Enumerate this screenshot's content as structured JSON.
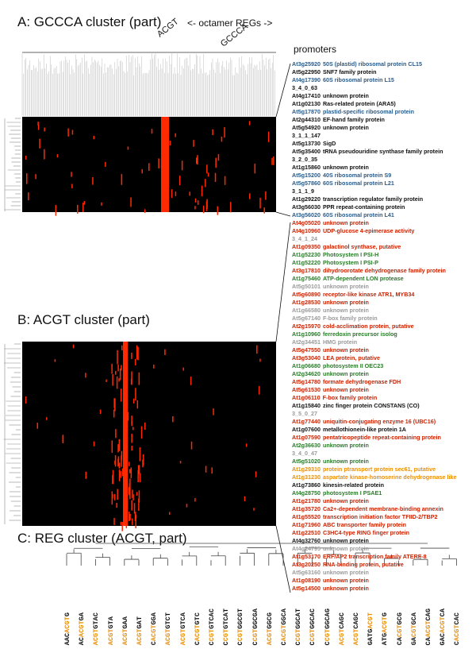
{
  "panels": {
    "a_title": "A: GCCCA cluster (part)",
    "b_title": "B: ACGT cluster (part)",
    "c_title": "C: REG cluster (ACGT, part)",
    "octamer_label": "<- octamer REGs ->",
    "col_acgt": "ACGT",
    "col_gccca": "GCCCA",
    "promoters_label": "promoters"
  },
  "colors": {
    "blue": "#2a5c8a",
    "black": "#111111",
    "red": "#cc2200",
    "green": "#2a7a2a",
    "gray": "#9a9a9a",
    "orange": "#e8900a",
    "heat_red": "#ff2a00",
    "heat_bg": "#000000"
  },
  "genes_a": [
    {
      "id": "At3g25920",
      "desc": "50S (plastid) ribosomal protein CL15",
      "color": "blue"
    },
    {
      "id": "At5g22950",
      "desc": "SNF7 family protein",
      "color": "black"
    },
    {
      "id": "At4g17390",
      "desc": "60S ribosomal protein L15",
      "color": "blue"
    },
    {
      "id": "3_4_0_63",
      "desc": "",
      "color": "black"
    },
    {
      "id": "At4g17410",
      "desc": "unknown protein",
      "color": "black"
    },
    {
      "id": "At1g02130",
      "desc": "Ras-related protein (ARA5)",
      "color": "black"
    },
    {
      "id": "At5g17870",
      "desc": "plastid-specific ribosomal protein",
      "color": "blue"
    },
    {
      "id": "At2g44310",
      "desc": "EF-hand family protein",
      "color": "black"
    },
    {
      "id": "At5g54920",
      "desc": "unknown protein",
      "color": "black"
    },
    {
      "id": "3_1_1_147",
      "desc": "",
      "color": "black"
    },
    {
      "id": "At5g13730",
      "desc": "SigD",
      "color": "black"
    },
    {
      "id": "At5g35400",
      "desc": "tRNA pseudouridine synthase family protein",
      "color": "black"
    },
    {
      "id": "3_2_0_35",
      "desc": "",
      "color": "black"
    },
    {
      "id": "At1g15860",
      "desc": "unknown protein",
      "color": "black"
    },
    {
      "id": "At5g15200",
      "desc": "40S ribosomal protein S9",
      "color": "blue"
    },
    {
      "id": "At5g57860",
      "desc": "60S ribosomal protein L21",
      "color": "blue"
    },
    {
      "id": "3_1_1_9",
      "desc": "",
      "color": "black"
    },
    {
      "id": "At1g29220",
      "desc": "transcription regulator family protein",
      "color": "black"
    },
    {
      "id": "At3g56030",
      "desc": "PPR repeat-containing protein",
      "color": "black"
    },
    {
      "id": "At3g56020",
      "desc": "60S ribosomal protein L41",
      "color": "blue"
    }
  ],
  "genes_b": [
    {
      "id": "At4g05020",
      "desc": "unknown protein",
      "color": "red"
    },
    {
      "id": "At4g10960",
      "desc": "UDP-glucose 4-epimerase activity",
      "color": "red"
    },
    {
      "id": "3_4_1_24",
      "desc": "",
      "color": "gray"
    },
    {
      "id": "At1g09350",
      "desc": "galactinol synthase, putative",
      "color": "red"
    },
    {
      "id": "At1g52230",
      "desc": "Photosystem I PSI-H",
      "color": "green"
    },
    {
      "id": "At1g52220",
      "desc": "Photosystem I PSI-P",
      "color": "green"
    },
    {
      "id": "At3g17810",
      "desc": "dihydroorotate dehydrogenase family protein",
      "color": "red"
    },
    {
      "id": "At1g75460",
      "desc": "ATP-dependent LON protease",
      "color": "green"
    },
    {
      "id": "At5g50101",
      "desc": "unknown protein",
      "color": "gray"
    },
    {
      "id": "At5g60890",
      "desc": "receptor-like kinase ATR1, MYB34",
      "color": "red"
    },
    {
      "id": "At1g28530",
      "desc": "unknown protein",
      "color": "red"
    },
    {
      "id": "At1g66580",
      "desc": "unknown protein",
      "color": "gray"
    },
    {
      "id": "At5g67140",
      "desc": "F-box family protein",
      "color": "gray"
    },
    {
      "id": "At2g15970",
      "desc": "cold-acclimation protein, putative",
      "color": "red"
    },
    {
      "id": "At1g10960",
      "desc": "ferredoxin precursor isolog",
      "color": "green"
    },
    {
      "id": "At2g34451",
      "desc": "HMG protein",
      "color": "gray"
    },
    {
      "id": "At5g47550",
      "desc": "unknown protein",
      "color": "red"
    },
    {
      "id": "At3g53040",
      "desc": "LEA protein, putative",
      "color": "red"
    },
    {
      "id": "At1g06680",
      "desc": "photosystem II OEC23",
      "color": "green"
    },
    {
      "id": "At2g34620",
      "desc": "unknown protein",
      "color": "green"
    },
    {
      "id": "At5g14780",
      "desc": "formate dehydrogenase FDH",
      "color": "red"
    },
    {
      "id": "At5g61530",
      "desc": "unknown protein",
      "color": "red"
    },
    {
      "id": "At1g06110",
      "desc": "F-box family protein",
      "color": "red"
    },
    {
      "id": "At1g15840",
      "desc": "zinc finger protein CONSTANS (CO)",
      "color": "black"
    },
    {
      "id": "3_5_0_27",
      "desc": "",
      "color": "gray"
    },
    {
      "id": "At1g77440",
      "desc": "uniquitin-conjugating enzyme 16 (UBC16)",
      "color": "red"
    },
    {
      "id": "At1g07600",
      "desc": "metallothionein-like protein 1A",
      "color": "black"
    },
    {
      "id": "At1g07590",
      "desc": "pentatricopeptide repeat-containing protein",
      "color": "red"
    },
    {
      "id": "At2g36630",
      "desc": "unknown protein",
      "color": "green"
    },
    {
      "id": "3_4_0_47",
      "desc": "",
      "color": "gray"
    },
    {
      "id": "At5g51020",
      "desc": "unknown protein",
      "color": "green"
    },
    {
      "id": "At1g29310",
      "desc": "protein ptransport protein sec61, putative",
      "color": "orange"
    },
    {
      "id": "At1g31230",
      "desc": "aspartate kinase-homoserine dehydrogenase like",
      "color": "orange"
    },
    {
      "id": "At1g73860",
      "desc": "kinesin-related protein",
      "color": "black"
    },
    {
      "id": "At4g28750",
      "desc": "photosystem I PSAE1",
      "color": "green"
    },
    {
      "id": "At1g21780",
      "desc": "unknown protein",
      "color": "red"
    },
    {
      "id": "At1g35720",
      "desc": "Ca2+-dependent membrane-binding annexin",
      "color": "red"
    },
    {
      "id": "At1g55520",
      "desc": "transcription initiation factor TFIID-2/TBP2",
      "color": "red"
    },
    {
      "id": "At1g71960",
      "desc": "ABC transporter family protein",
      "color": "red"
    },
    {
      "id": "At1g22510",
      "desc": "C3HC4-type RING finger protein",
      "color": "red"
    },
    {
      "id": "At4g32760",
      "desc": "unknown protein",
      "color": "black"
    },
    {
      "id": "At4g24795",
      "desc": "unknown protein",
      "color": "gray"
    },
    {
      "id": "At1g53170",
      "desc": "ERF/AP2 transcription family ATERF-8",
      "color": "red"
    },
    {
      "id": "At3g20250",
      "desc": "RNA-binding protein, putative",
      "color": "red"
    },
    {
      "id": "At5g63160",
      "desc": "unknown protein",
      "color": "gray"
    },
    {
      "id": "At1g08190",
      "desc": "unknown protein",
      "color": "red"
    },
    {
      "id": "At5g14500",
      "desc": "unknown protein",
      "color": "red"
    }
  ],
  "regs": [
    {
      "pre": "AAC",
      "mid": "ACGT",
      "post": "G"
    },
    {
      "pre": "AC",
      "mid": "ACGT",
      "post": "GA"
    },
    {
      "pre": "",
      "mid": "ACGT",
      "post": "GTAC"
    },
    {
      "pre": "",
      "mid": "ACGT",
      "post": "GTA"
    },
    {
      "pre": "",
      "mid": "ACGT",
      "post": "GAA"
    },
    {
      "pre": "",
      "mid": "ACGT",
      "post": "GAT"
    },
    {
      "pre": "C",
      "mid": "ACGT",
      "post": "GGA"
    },
    {
      "pre": "",
      "mid": "ACGT",
      "post": "GTCT"
    },
    {
      "pre": "",
      "mid": "ACGT",
      "post": "GTCA"
    },
    {
      "pre": "C",
      "mid": "ACGT",
      "post": "GTC"
    },
    {
      "pre": "C",
      "mid": "CGT",
      "post": "GTCAC"
    },
    {
      "pre": "C",
      "mid": "CGT",
      "post": "GTCAT"
    },
    {
      "pre": "C",
      "mid": "CGT",
      "post": "GGCGT"
    },
    {
      "pre": "C",
      "mid": "CGT",
      "post": "GGCGA"
    },
    {
      "pre": "",
      "mid": "ACGT",
      "post": "GGCG"
    },
    {
      "pre": "C",
      "mid": "ACGT",
      "post": "GGCA"
    },
    {
      "pre": "C",
      "mid": "CGT",
      "post": "GGCAT"
    },
    {
      "pre": "C",
      "mid": "CGT",
      "post": "GGCAC"
    },
    {
      "pre": "C",
      "mid": "CGT",
      "post": "GGCAG"
    },
    {
      "pre": "",
      "mid": "ACGT",
      "post": "CAGC"
    },
    {
      "pre": "",
      "mid": "ACGT",
      "post": "CAGC"
    },
    {
      "pre": "GATG",
      "mid": "ACGT",
      "post": ""
    },
    {
      "pre": "ATG",
      "mid": "ACGT",
      "post": "G"
    },
    {
      "pre": "CA",
      "mid": "CGT",
      "post": "GCG"
    },
    {
      "pre": "GA",
      "mid": "CGT",
      "post": "GCA"
    },
    {
      "pre": "CA",
      "mid": "ACGT",
      "post": "CAG"
    },
    {
      "pre": "GAC",
      "mid": "ACGT",
      "post": "CA"
    },
    {
      "pre": "C",
      "mid": "ACGT",
      "post": "CAC"
    }
  ]
}
